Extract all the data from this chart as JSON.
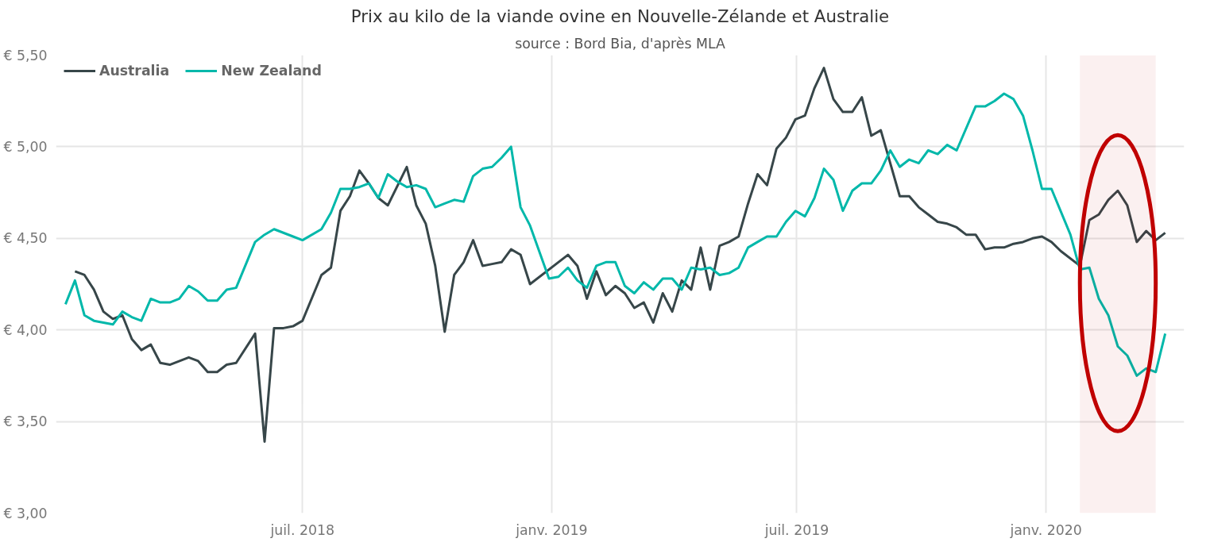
{
  "chart_data": {
    "type": "line",
    "title": "Prix au kilo de la viande ovine en Nouvelle-Zélande et Australie",
    "subtitle": "source : Bord Bia, d'après MLA",
    "xlim": [
      "2017-12-31",
      "2020-04-12"
    ],
    "xticks": [
      {
        "value": "2018-07-01",
        "label": "juil. 2018"
      },
      {
        "value": "2019-01-01",
        "label": "janv. 2019"
      },
      {
        "value": "2019-07-01",
        "label": "juil. 2019"
      },
      {
        "value": "2020-01-01",
        "label": "janv. 2020"
      }
    ],
    "ylim": [
      3.0,
      5.5
    ],
    "yticks": [
      {
        "value": 3.0,
        "label": "€ 3,00"
      },
      {
        "value": 3.5,
        "label": "€ 3,50"
      },
      {
        "value": 4.0,
        "label": "€ 4,00"
      },
      {
        "value": 4.5,
        "label": "€ 4,50"
      },
      {
        "value": 5.0,
        "label": "€ 5,00"
      },
      {
        "value": 5.5,
        "label": "€ 5,50"
      }
    ],
    "grid": true,
    "legend": "top left",
    "line_style": "solid",
    "bands": [
      {
        "axis": "x",
        "from": "2020-01-26",
        "to": "2020-03-22",
        "color": "#c00000"
      }
    ],
    "series": [
      {
        "name": "Australia",
        "color": "#374649",
        "x": [
          "2018-01-14",
          "2018-01-21",
          "2018-01-28",
          "2018-02-04",
          "2018-02-11",
          "2018-02-18",
          "2018-02-25",
          "2018-03-04",
          "2018-03-11",
          "2018-03-18",
          "2018-03-25",
          "2018-04-08",
          "2018-04-15",
          "2018-04-22",
          "2018-04-29",
          "2018-05-06",
          "2018-05-13",
          "2018-05-27",
          "2018-06-03",
          "2018-06-10",
          "2018-06-17",
          "2018-06-24",
          "2018-07-01",
          "2018-07-15",
          "2018-07-22",
          "2018-07-29",
          "2018-08-05",
          "2018-08-12",
          "2018-08-19",
          "2018-08-26",
          "2018-09-02",
          "2018-09-16",
          "2018-09-23",
          "2018-09-30",
          "2018-10-07",
          "2018-10-14",
          "2018-10-21",
          "2018-10-28",
          "2018-11-04",
          "2018-11-11",
          "2018-11-18",
          "2018-11-25",
          "2018-12-02",
          "2018-12-09",
          "2018-12-16",
          "2019-01-13",
          "2019-01-20",
          "2019-01-27",
          "2019-02-03",
          "2019-02-10",
          "2019-02-17",
          "2019-02-24",
          "2019-03-03",
          "2019-03-10",
          "2019-03-17",
          "2019-03-24",
          "2019-03-31",
          "2019-04-07",
          "2019-04-14",
          "2019-04-21",
          "2019-04-28",
          "2019-05-05",
          "2019-05-12",
          "2019-05-19",
          "2019-05-26",
          "2019-06-02",
          "2019-06-09",
          "2019-06-16",
          "2019-06-23",
          "2019-06-30",
          "2019-07-07",
          "2019-07-14",
          "2019-07-21",
          "2019-07-28",
          "2019-08-04",
          "2019-08-11",
          "2019-08-18",
          "2019-08-25",
          "2019-09-01",
          "2019-09-15",
          "2019-09-22",
          "2019-09-29",
          "2019-10-06",
          "2019-10-13",
          "2019-10-20",
          "2019-10-27",
          "2019-11-03",
          "2019-11-10",
          "2019-11-17",
          "2019-11-24",
          "2019-12-01",
          "2019-12-08",
          "2019-12-15",
          "2019-12-22",
          "2019-12-29",
          "2020-01-05",
          "2020-01-12",
          "2020-01-26",
          "2020-02-02",
          "2020-02-09",
          "2020-02-16",
          "2020-02-23",
          "2020-03-01",
          "2020-03-08",
          "2020-03-15",
          "2020-03-22",
          "2020-03-29"
        ],
        "values": [
          4.32,
          4.3,
          4.22,
          4.1,
          4.06,
          4.08,
          3.95,
          3.89,
          3.92,
          3.82,
          3.81,
          3.85,
          3.83,
          3.77,
          3.77,
          3.81,
          3.82,
          3.98,
          3.39,
          4.01,
          4.01,
          4.02,
          4.05,
          4.3,
          4.34,
          4.65,
          4.73,
          4.87,
          4.8,
          4.72,
          4.68,
          4.89,
          4.68,
          4.58,
          4.35,
          3.99,
          4.3,
          4.37,
          4.49,
          4.35,
          4.36,
          4.37,
          4.44,
          4.41,
          4.25,
          4.41,
          4.35,
          4.17,
          4.32,
          4.19,
          4.24,
          4.2,
          4.12,
          4.15,
          4.04,
          4.2,
          4.1,
          4.27,
          4.22,
          4.45,
          4.22,
          4.46,
          4.48,
          4.51,
          4.69,
          4.85,
          4.79,
          4.99,
          5.05,
          5.15,
          5.17,
          5.32,
          5.43,
          5.26,
          5.19,
          5.19,
          5.27,
          5.06,
          5.09,
          4.73,
          4.73,
          4.67,
          4.63,
          4.59,
          4.58,
          4.56,
          4.52,
          4.52,
          4.44,
          4.45,
          4.45,
          4.47,
          4.48,
          4.5,
          4.51,
          4.48,
          4.43,
          4.35,
          4.6,
          4.63,
          4.71,
          4.76,
          4.68,
          4.48,
          4.54,
          4.49,
          4.53
        ]
      },
      {
        "name": "New Zealand",
        "color": "#01b8aa",
        "x": [
          "2018-01-07",
          "2018-01-14",
          "2018-01-21",
          "2018-01-28",
          "2018-02-04",
          "2018-02-11",
          "2018-02-18",
          "2018-02-25",
          "2018-03-04",
          "2018-03-11",
          "2018-03-18",
          "2018-03-25",
          "2018-04-01",
          "2018-04-08",
          "2018-04-15",
          "2018-04-22",
          "2018-04-29",
          "2018-05-06",
          "2018-05-13",
          "2018-05-27",
          "2018-06-03",
          "2018-06-10",
          "2018-06-24",
          "2018-07-01",
          "2018-07-15",
          "2018-07-22",
          "2018-07-29",
          "2018-08-05",
          "2018-08-12",
          "2018-08-19",
          "2018-08-26",
          "2018-09-02",
          "2018-09-09",
          "2018-09-16",
          "2018-09-23",
          "2018-09-30",
          "2018-10-07",
          "2018-10-14",
          "2018-10-21",
          "2018-10-28",
          "2018-11-04",
          "2018-11-11",
          "2018-11-18",
          "2018-11-25",
          "2018-12-02",
          "2018-12-09",
          "2018-12-16",
          "2018-12-30",
          "2019-01-06",
          "2019-01-13",
          "2019-01-20",
          "2019-01-27",
          "2019-02-03",
          "2019-02-10",
          "2019-02-17",
          "2019-02-24",
          "2019-03-03",
          "2019-03-10",
          "2019-03-17",
          "2019-03-24",
          "2019-03-31",
          "2019-04-07",
          "2019-04-14",
          "2019-04-21",
          "2019-04-28",
          "2019-05-05",
          "2019-05-12",
          "2019-05-19",
          "2019-05-26",
          "2019-06-02",
          "2019-06-09",
          "2019-06-16",
          "2019-06-23",
          "2019-06-30",
          "2019-07-07",
          "2019-07-14",
          "2019-07-21",
          "2019-07-28",
          "2019-08-04",
          "2019-08-11",
          "2019-08-18",
          "2019-08-25",
          "2019-09-01",
          "2019-09-08",
          "2019-09-15",
          "2019-09-22",
          "2019-09-29",
          "2019-10-06",
          "2019-10-13",
          "2019-10-20",
          "2019-10-27",
          "2019-11-10",
          "2019-11-17",
          "2019-11-24",
          "2019-12-01",
          "2019-12-08",
          "2019-12-15",
          "2019-12-22",
          "2019-12-29",
          "2020-01-05",
          "2020-01-19",
          "2020-01-26",
          "2020-02-02",
          "2020-02-09",
          "2020-02-16",
          "2020-02-23",
          "2020-03-01",
          "2020-03-08",
          "2020-03-15",
          "2020-03-22",
          "2020-03-29"
        ],
        "values": [
          4.14,
          4.27,
          4.08,
          4.05,
          4.04,
          4.03,
          4.1,
          4.07,
          4.05,
          4.17,
          4.15,
          4.15,
          4.17,
          4.24,
          4.21,
          4.16,
          4.16,
          4.22,
          4.23,
          4.48,
          4.52,
          4.55,
          4.51,
          4.49,
          4.55,
          4.64,
          4.77,
          4.77,
          4.78,
          4.8,
          4.72,
          4.85,
          4.81,
          4.78,
          4.79,
          4.77,
          4.67,
          4.69,
          4.71,
          4.7,
          4.84,
          4.88,
          4.89,
          4.94,
          5.0,
          4.67,
          4.57,
          4.28,
          4.29,
          4.34,
          4.27,
          4.23,
          4.35,
          4.37,
          4.37,
          4.24,
          4.2,
          4.26,
          4.22,
          4.28,
          4.28,
          4.22,
          4.34,
          4.33,
          4.34,
          4.3,
          4.31,
          4.34,
          4.45,
          4.48,
          4.51,
          4.51,
          4.59,
          4.65,
          4.62,
          4.72,
          4.88,
          4.82,
          4.65,
          4.76,
          4.8,
          4.8,
          4.87,
          4.98,
          4.89,
          4.93,
          4.91,
          4.98,
          4.96,
          5.01,
          4.98,
          5.22,
          5.22,
          5.25,
          5.29,
          5.26,
          5.17,
          4.98,
          4.77,
          4.77,
          4.52,
          4.33,
          4.34,
          4.17,
          4.08,
          3.91,
          3.86,
          3.75,
          3.79,
          3.77,
          3.98
        ]
      }
    ]
  }
}
